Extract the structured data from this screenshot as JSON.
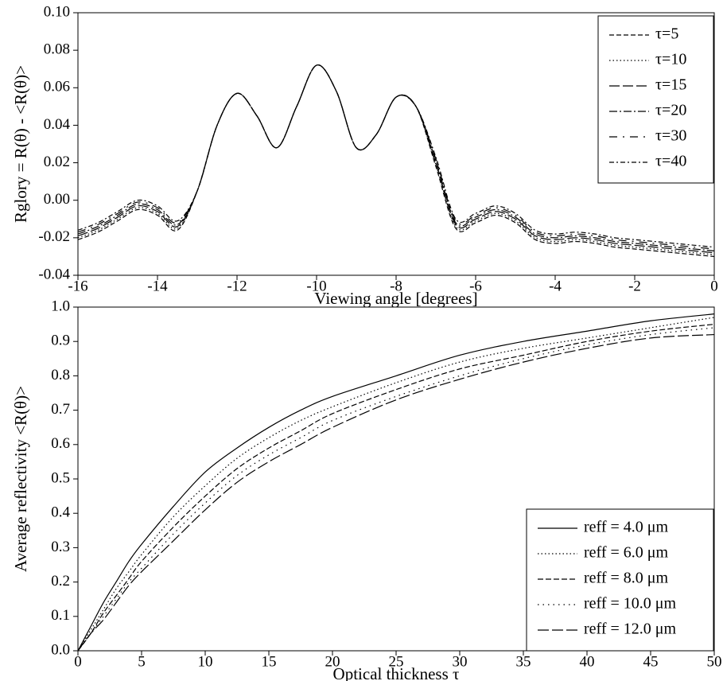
{
  "chart_data": [
    {
      "type": "line",
      "xlabel": "Viewing angle [degrees]",
      "ylabel": "Rglory = R(θ) - <R(θ)>",
      "x": [
        -16,
        -15.5,
        -15,
        -14.5,
        -14,
        -13.5,
        -13,
        -12.5,
        -12,
        -11.5,
        -11,
        -10.5,
        -10,
        -9.5,
        -9,
        -8.5,
        -8,
        -7.5,
        -7,
        -6.5,
        -6,
        -5.5,
        -5,
        -4.5,
        -4,
        -3.5,
        -3,
        -2.5,
        -2,
        -1.5,
        -1,
        -0.5,
        0
      ],
      "series": [
        {
          "name": "τ=5",
          "color": "#000000",
          "values": [
            -0.021,
            -0.017,
            -0.011,
            -0.005,
            -0.008,
            -0.016,
            0.005,
            0.04,
            0.057,
            0.045,
            0.028,
            0.05,
            0.072,
            0.058,
            0.028,
            0.035,
            0.055,
            0.05,
            0.018,
            -0.015,
            -0.012,
            -0.008,
            -0.012,
            -0.021,
            -0.023,
            -0.022,
            -0.023,
            -0.025,
            -0.026,
            -0.027,
            -0.028,
            -0.029,
            -0.03
          ]
        },
        {
          "name": "τ=10",
          "color": "#000000",
          "values": [
            -0.02,
            -0.016,
            -0.01,
            -0.004,
            -0.007,
            -0.015,
            0.005,
            0.04,
            0.057,
            0.045,
            0.028,
            0.05,
            0.072,
            0.058,
            0.028,
            0.035,
            0.055,
            0.05,
            0.019,
            -0.014,
            -0.011,
            -0.007,
            -0.011,
            -0.02,
            -0.022,
            -0.021,
            -0.022,
            -0.024,
            -0.025,
            -0.026,
            -0.027,
            -0.028,
            -0.029
          ]
        },
        {
          "name": "τ=15",
          "color": "#000000",
          "values": [
            -0.019,
            -0.015,
            -0.009,
            -0.003,
            -0.006,
            -0.014,
            0.005,
            0.04,
            0.057,
            0.045,
            0.028,
            0.05,
            0.072,
            0.058,
            0.028,
            0.035,
            0.055,
            0.05,
            0.02,
            -0.013,
            -0.01,
            -0.006,
            -0.01,
            -0.019,
            -0.021,
            -0.02,
            -0.021,
            -0.023,
            -0.024,
            -0.025,
            -0.026,
            -0.027,
            -0.028
          ]
        },
        {
          "name": "τ=20",
          "color": "#000000",
          "values": [
            -0.018,
            -0.014,
            -0.008,
            -0.002,
            -0.005,
            -0.013,
            0.005,
            0.04,
            0.057,
            0.045,
            0.028,
            0.05,
            0.072,
            0.058,
            0.028,
            0.035,
            0.055,
            0.05,
            0.021,
            -0.012,
            -0.009,
            -0.005,
            -0.009,
            -0.018,
            -0.02,
            -0.019,
            -0.02,
            -0.022,
            -0.023,
            -0.024,
            -0.025,
            -0.026,
            -0.027
          ]
        },
        {
          "name": "τ=30",
          "color": "#000000",
          "values": [
            -0.017,
            -0.013,
            -0.007,
            -0.001,
            -0.004,
            -0.012,
            0.005,
            0.04,
            0.057,
            0.045,
            0.028,
            0.05,
            0.072,
            0.058,
            0.028,
            0.035,
            0.055,
            0.05,
            0.022,
            -0.011,
            -0.008,
            -0.004,
            -0.008,
            -0.017,
            -0.019,
            -0.018,
            -0.019,
            -0.021,
            -0.022,
            -0.023,
            -0.024,
            -0.025,
            -0.026
          ]
        },
        {
          "name": "τ=40",
          "color": "#000000",
          "values": [
            -0.016,
            -0.012,
            -0.006,
            0,
            -0.003,
            -0.011,
            0.005,
            0.04,
            0.057,
            0.045,
            0.028,
            0.05,
            0.072,
            0.058,
            0.028,
            0.035,
            0.055,
            0.05,
            0.023,
            -0.01,
            -0.007,
            -0.003,
            -0.007,
            -0.016,
            -0.018,
            -0.017,
            -0.018,
            -0.02,
            -0.021,
            -0.022,
            -0.023,
            -0.024,
            -0.025
          ]
        }
      ],
      "xlim": [
        -16,
        0
      ],
      "ylim": [
        -0.04,
        0.1
      ],
      "xticks": [
        -16,
        -14,
        -12,
        -10,
        -8,
        -6,
        -4,
        -2,
        0
      ],
      "yticks": [
        {
          "value": 0.1,
          "label": "0.10"
        },
        0.08,
        0.06,
        0.04,
        0.02,
        {
          "value": 0,
          "label": "0.00"
        },
        -0.02,
        -0.04
      ],
      "legend": "upper right"
    },
    {
      "type": "line",
      "xlabel": "Optical thickness τ",
      "ylabel": "Average reflectivity <R(θ)>",
      "x": [
        0,
        1,
        2,
        3,
        4,
        5,
        7.5,
        10,
        12.5,
        15,
        17.5,
        20,
        25,
        30,
        35,
        40,
        45,
        50
      ],
      "series": [
        {
          "name": "reff = 4.0 μm",
          "color": "#000000",
          "values": [
            0,
            0.07,
            0.14,
            0.2,
            0.26,
            0.31,
            0.42,
            0.52,
            0.59,
            0.65,
            0.7,
            0.74,
            0.8,
            0.86,
            0.9,
            0.93,
            0.96,
            0.98
          ]
        },
        {
          "name": "reff = 6.0 μm",
          "color": "#000000",
          "values": [
            0,
            0.06,
            0.12,
            0.18,
            0.23,
            0.28,
            0.39,
            0.48,
            0.56,
            0.62,
            0.67,
            0.71,
            0.78,
            0.84,
            0.88,
            0.91,
            0.94,
            0.97
          ]
        },
        {
          "name": "reff = 8.0 μm",
          "color": "#000000",
          "values": [
            0,
            0.05,
            0.11,
            0.16,
            0.21,
            0.26,
            0.36,
            0.45,
            0.53,
            0.59,
            0.64,
            0.69,
            0.76,
            0.82,
            0.86,
            0.9,
            0.93,
            0.95
          ]
        },
        {
          "name": "reff = 10.0 μm",
          "color": "#000000",
          "values": [
            0,
            0.05,
            0.1,
            0.15,
            0.2,
            0.24,
            0.34,
            0.43,
            0.51,
            0.57,
            0.62,
            0.67,
            0.74,
            0.8,
            0.85,
            0.89,
            0.92,
            0.94
          ]
        },
        {
          "name": "reff = 12.0 μm",
          "color": "#000000",
          "values": [
            0,
            0.05,
            0.09,
            0.14,
            0.19,
            0.23,
            0.32,
            0.41,
            0.49,
            0.55,
            0.6,
            0.65,
            0.73,
            0.79,
            0.84,
            0.88,
            0.91,
            0.92
          ]
        }
      ],
      "xlim": [
        0,
        50
      ],
      "ylim": [
        0,
        1
      ],
      "xticks": [
        0,
        5,
        10,
        15,
        20,
        25,
        30,
        35,
        40,
        45,
        50
      ],
      "yticks": [
        {
          "value": 0,
          "label": "0.0"
        },
        0.1,
        0.2,
        0.3,
        0.4,
        0.5,
        0.6,
        0.7,
        0.8,
        0.9,
        {
          "value": 1,
          "label": "1.0"
        }
      ],
      "legend": "lower right"
    }
  ]
}
